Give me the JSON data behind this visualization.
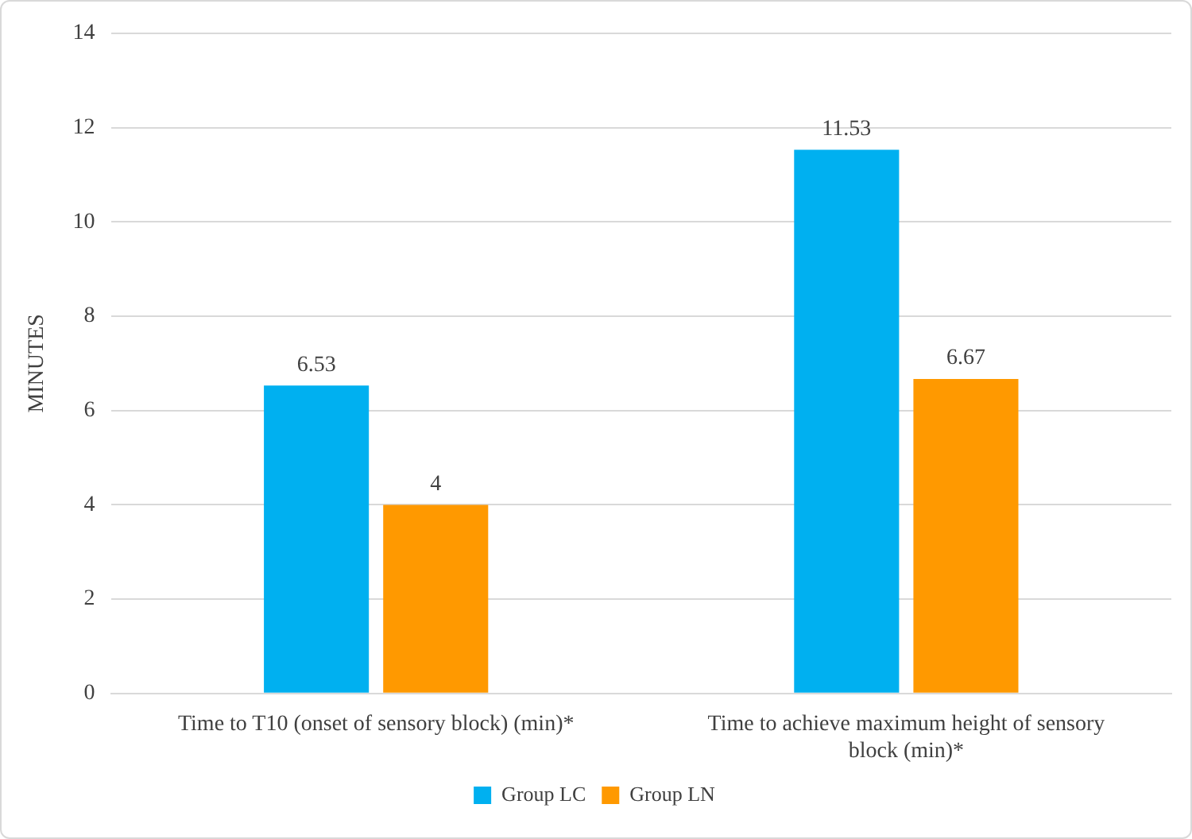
{
  "chart_data": {
    "type": "bar",
    "ylabel": "MINUTES",
    "categories": [
      "Time to T10 (onset of sensory block) (min)*",
      "Time to achieve maximum height of sensory block (min)*"
    ],
    "series": [
      {
        "name": "Group LC",
        "color": "#00b0f0",
        "values": [
          6.53,
          11.53
        ]
      },
      {
        "name": "Group LN",
        "color": "#ff9900",
        "values": [
          4,
          6.67
        ]
      }
    ],
    "ylim": [
      0,
      14
    ],
    "yticks": [
      0,
      2,
      4,
      6,
      8,
      10,
      12,
      14
    ],
    "grid": "y",
    "legend": "bottom",
    "data_labels": true
  }
}
